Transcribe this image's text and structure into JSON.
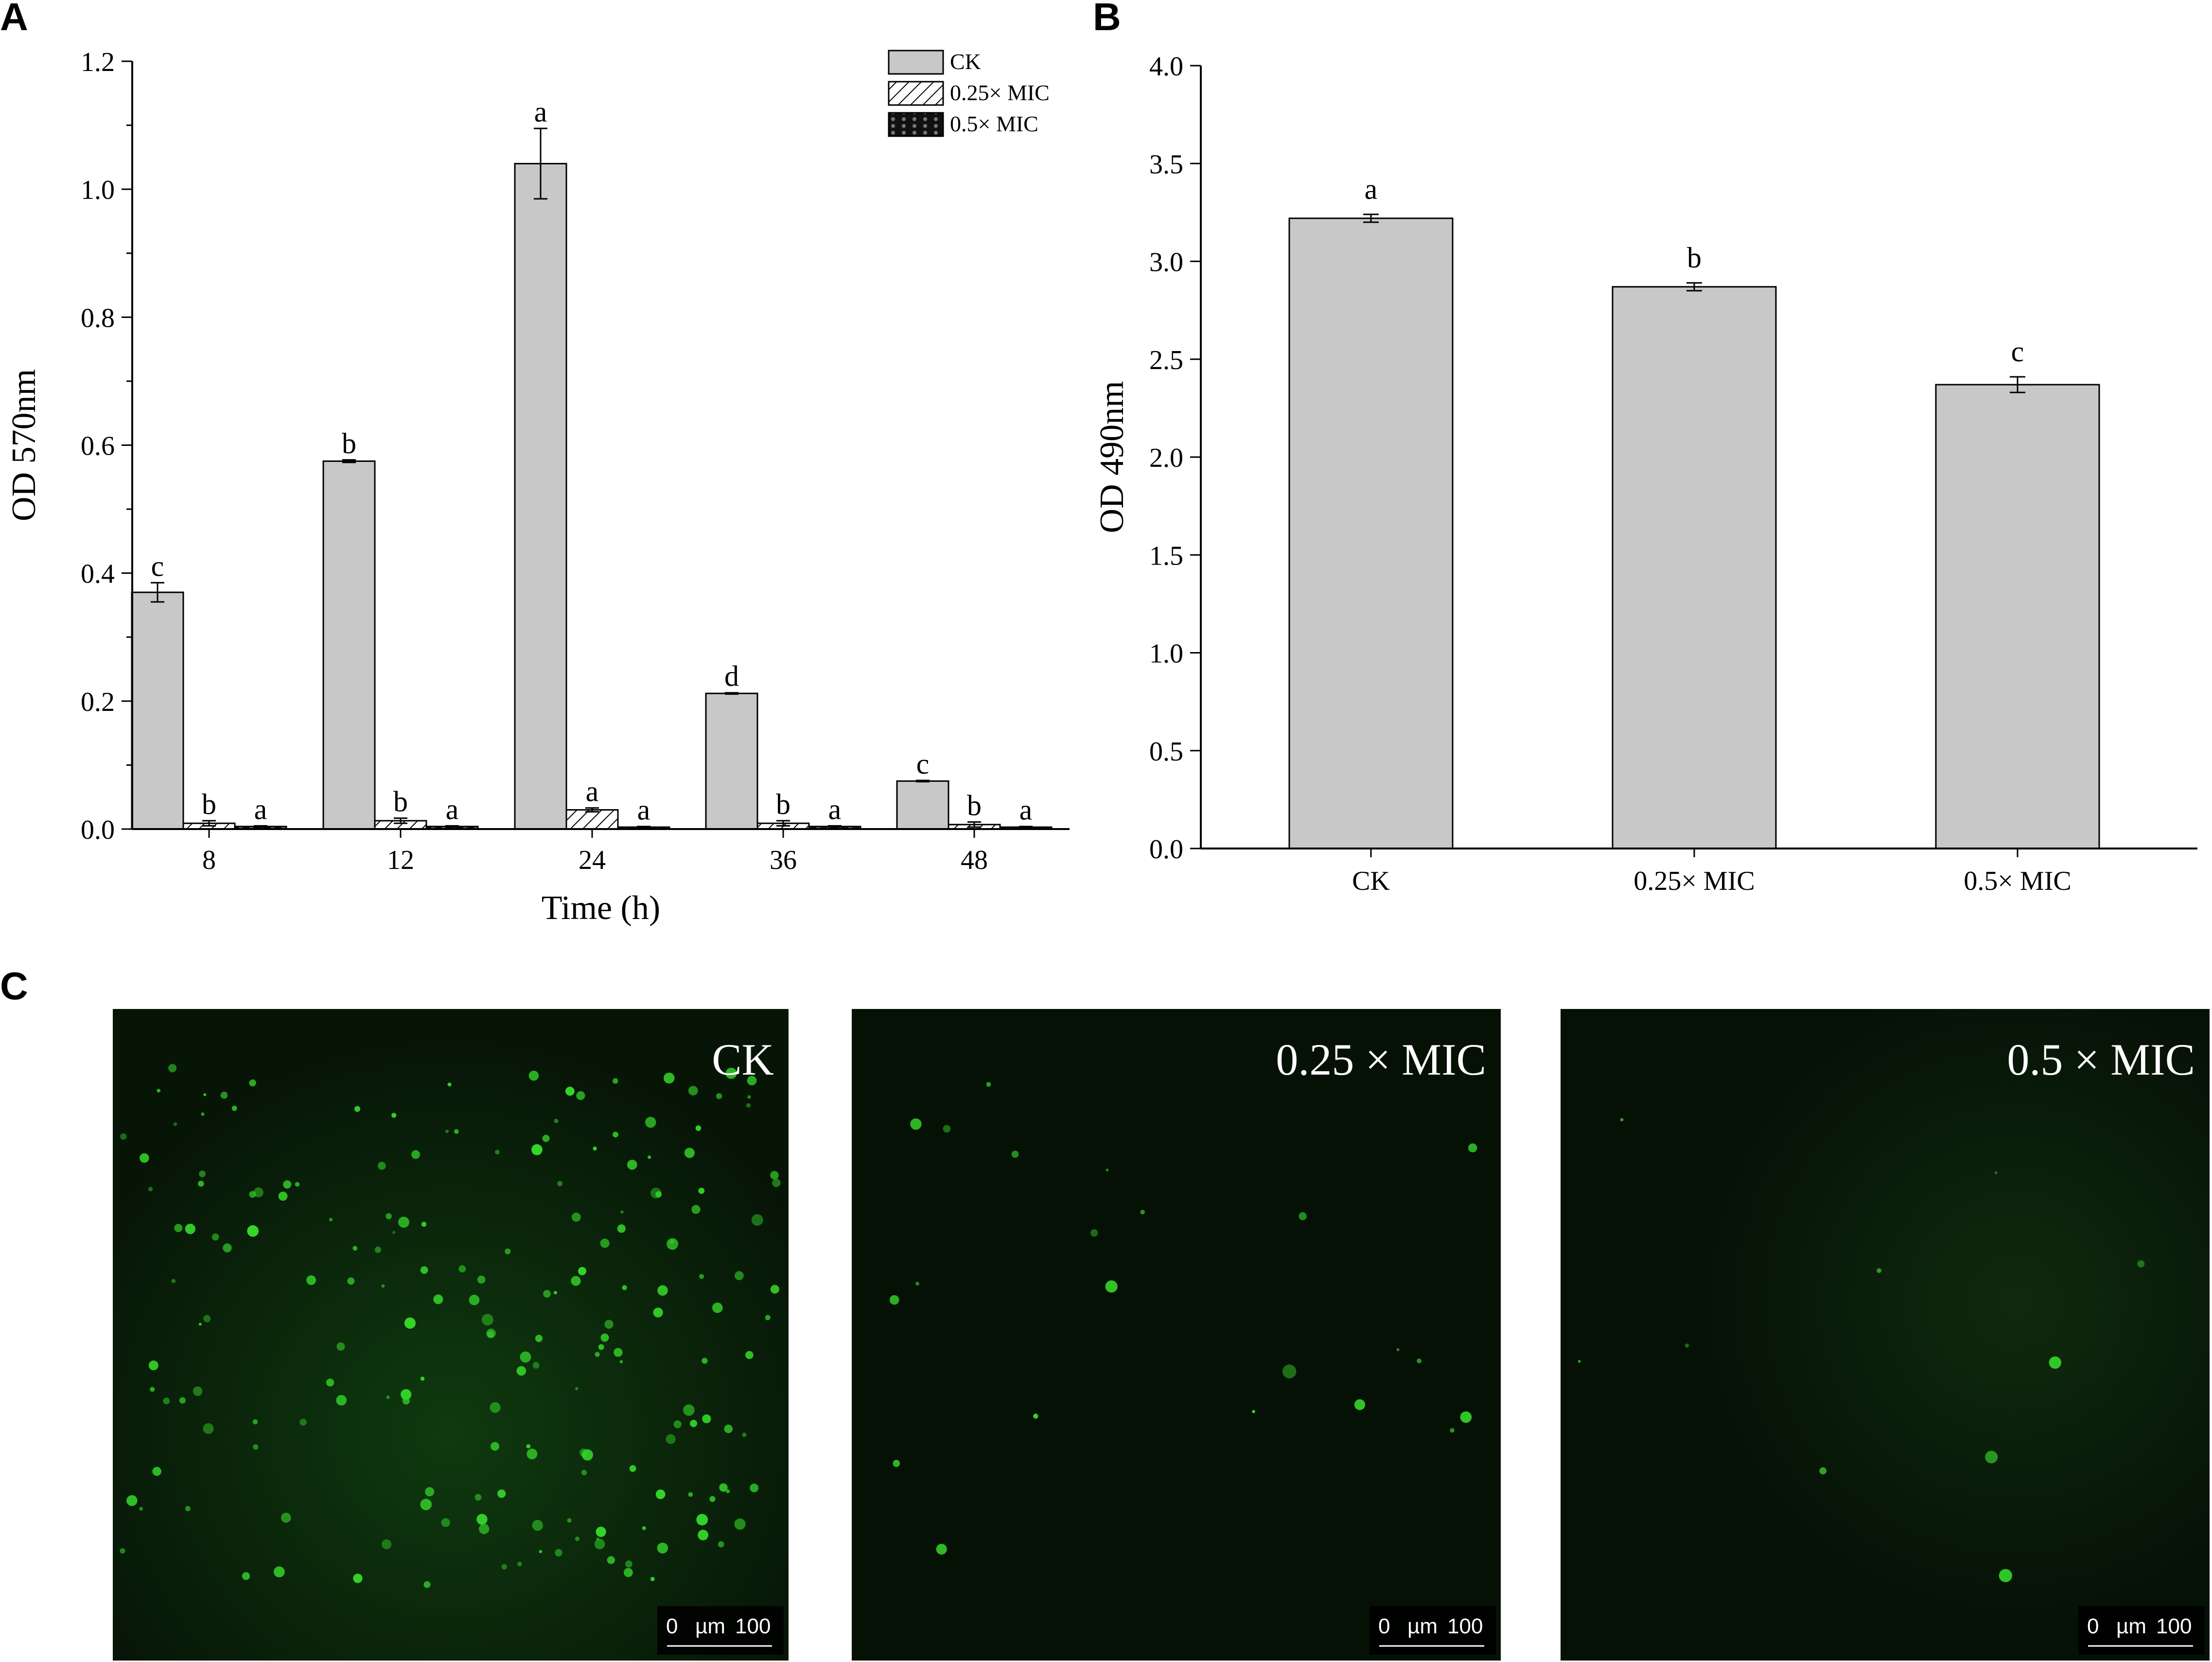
{
  "panels": {
    "a": "A",
    "b": "B",
    "c": "C"
  },
  "colors": {
    "bar_fill": "#c8c8c8",
    "bar_stroke": "#000000",
    "micro_background": "#061106",
    "fluorescence": "#35d62a"
  },
  "chart_data": [
    {
      "type": "bar",
      "panel": "A",
      "title": "",
      "xlabel": "Time (h)",
      "ylabel": "OD 570nm",
      "ylim": [
        0,
        1.2
      ],
      "yticks": [
        "0.0",
        "0.2",
        "0.4",
        "0.6",
        "0.8",
        "1.0",
        "1.2"
      ],
      "categories": [
        "8",
        "12",
        "24",
        "36",
        "48"
      ],
      "legend_position": "top-right",
      "series": [
        {
          "name": "CK",
          "pattern": "solid-gray",
          "values": [
            0.37,
            0.575,
            1.04,
            0.212,
            0.075
          ],
          "errors": [
            0.015,
            0.002,
            0.055,
            0.001,
            0.001
          ],
          "labels": [
            "c",
            "b",
            "a",
            "d",
            "c"
          ]
        },
        {
          "name": "0.25× MIC",
          "pattern": "hatched",
          "values": [
            0.009,
            0.013,
            0.03,
            0.009,
            0.007
          ],
          "errors": [
            0.004,
            0.004,
            0.003,
            0.004,
            0.004
          ],
          "labels": [
            "b",
            "b",
            "a",
            "b",
            "b"
          ]
        },
        {
          "name": "0.5× MIC",
          "pattern": "dark-dotted",
          "values": [
            0.004,
            0.004,
            0.003,
            0.004,
            0.003
          ],
          "errors": [
            0.001,
            0.001,
            0.001,
            0.001,
            0.001
          ],
          "labels": [
            "a",
            "a",
            "a",
            "a",
            "a"
          ]
        }
      ]
    },
    {
      "type": "bar",
      "panel": "B",
      "title": "",
      "xlabel": "",
      "ylabel": "OD 490nm",
      "ylim": [
        0,
        4.0
      ],
      "yticks": [
        "0.0",
        "0.5",
        "1.0",
        "1.5",
        "2.0",
        "2.5",
        "3.0",
        "3.5",
        "4.0"
      ],
      "categories": [
        "CK",
        "0.25× MIC",
        "0.5× MIC"
      ],
      "values": [
        3.22,
        2.87,
        2.37
      ],
      "errors": [
        0.02,
        0.02,
        0.04
      ],
      "labels": [
        "a",
        "b",
        "c"
      ]
    }
  ],
  "micrographs": [
    {
      "label": "CK",
      "scale_zero": "0",
      "scale_unit": "µm",
      "scale_value": "100"
    },
    {
      "label": "0.25 ×  MIC",
      "scale_zero": "0",
      "scale_unit": "µm",
      "scale_value": "100"
    },
    {
      "label": "0.5 ×  MIC",
      "scale_zero": "0",
      "scale_unit": "µm",
      "scale_value": "100"
    }
  ]
}
